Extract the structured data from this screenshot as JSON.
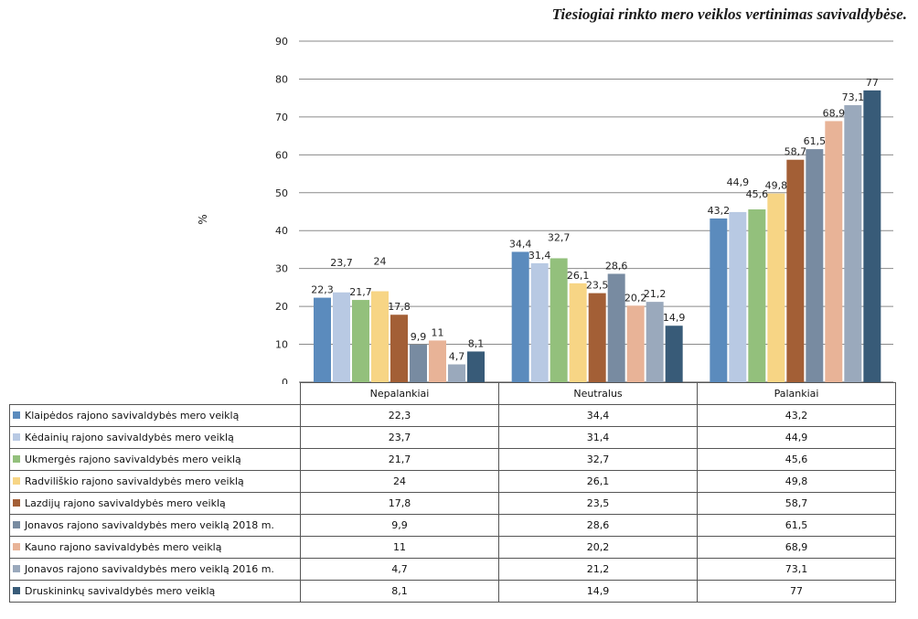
{
  "chart_data": {
    "type": "bar",
    "title": "Tiesiogiai rinkto mero veiklos vertinimas savivaldybėse.",
    "ylabel": "%",
    "xlabel": "",
    "ylim": [
      0,
      90
    ],
    "yticks": [
      0,
      10,
      20,
      30,
      40,
      50,
      60,
      70,
      80,
      90
    ],
    "grid": true,
    "legend": "table-below",
    "categories": [
      "Nepalankiai",
      "Neutralus",
      "Palankiai"
    ],
    "series": [
      {
        "name": "Klaipėdos rajono savivaldybės mero veiklą",
        "color": "#5b8bbd",
        "values": [
          22.3,
          34.4,
          43.2
        ],
        "labels": [
          "22,3",
          "34,4",
          "43,2"
        ]
      },
      {
        "name": "Kėdainių rajono savivaldybės mero veiklą",
        "color": "#b8c9e3",
        "values": [
          23.7,
          31.4,
          44.9
        ],
        "labels": [
          "23,7",
          "31,4",
          "44,9"
        ]
      },
      {
        "name": "Ukmergės rajono savivaldybės mero veiklą",
        "color": "#93c07c",
        "values": [
          21.7,
          32.7,
          45.6
        ],
        "labels": [
          "21,7",
          "32,7",
          "45,6"
        ]
      },
      {
        "name": "Radviliškio rajono savivaldybės mero veiklą",
        "color": "#f7d585",
        "values": [
          24,
          26.1,
          49.8
        ],
        "labels": [
          "24",
          "26,1",
          "49,8"
        ]
      },
      {
        "name": "Lazdijų rajono savivaldybės mero veiklą",
        "color": "#a35f36",
        "values": [
          17.8,
          23.5,
          58.7
        ],
        "labels": [
          "17,8",
          "23,5",
          "58,7"
        ]
      },
      {
        "name": "Jonavos rajono savivaldybės mero veiklą 2018 m.",
        "color": "#788ba1",
        "values": [
          9.9,
          28.6,
          61.5
        ],
        "labels": [
          "9,9",
          "28,6",
          "61,5"
        ]
      },
      {
        "name": "Kauno rajono savivaldybės mero veiklą",
        "color": "#e8b397",
        "values": [
          11,
          20.2,
          68.9
        ],
        "labels": [
          "11",
          "20,2",
          "68,9"
        ]
      },
      {
        "name": "Jonavos rajono savivaldybės mero veiklą 2016 m.",
        "color": "#9aa9bc",
        "values": [
          4.7,
          21.2,
          73.1
        ],
        "labels": [
          "4,7",
          "21,2",
          "73,1"
        ]
      },
      {
        "name": "Druskininkų savivaldybės mero veiklą",
        "color": "#385b78",
        "values": [
          8.1,
          14.9,
          77
        ],
        "labels": [
          "8,1",
          "14,9",
          "77"
        ]
      }
    ]
  }
}
